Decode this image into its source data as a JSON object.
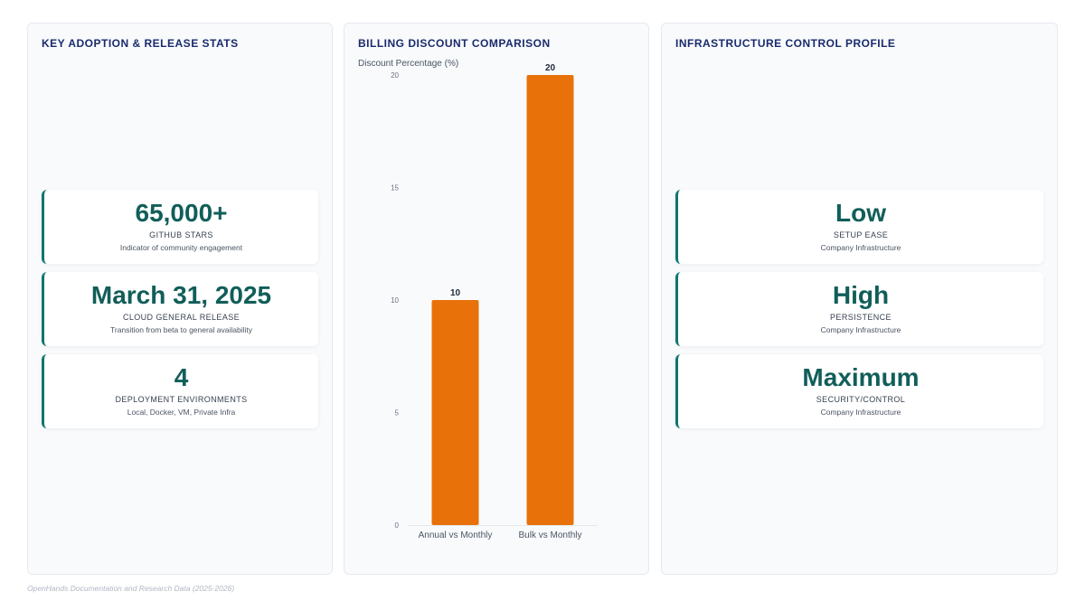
{
  "left_panel": {
    "title": "KEY ADOPTION & RELEASE STATS",
    "cards": [
      {
        "value": "65,000+",
        "label": "GITHUB STARS",
        "desc": "Indicator of community engagement"
      },
      {
        "value": "March 31, 2025",
        "label": "CLOUD GENERAL RELEASE",
        "desc": "Transition from beta to general availability"
      },
      {
        "value": "4",
        "label": "DEPLOYMENT ENVIRONMENTS",
        "desc": "Local, Docker, VM, Private Infra"
      }
    ]
  },
  "mid_panel": {
    "title": "BILLING DISCOUNT COMPARISON"
  },
  "right_panel": {
    "title": "INFRASTRUCTURE CONTROL PROFILE",
    "cards": [
      {
        "value": "Low",
        "label": "SETUP EASE",
        "desc": "Company Infrastructure"
      },
      {
        "value": "High",
        "label": "PERSISTENCE",
        "desc": "Company Infrastructure"
      },
      {
        "value": "Maximum",
        "label": "SECURITY/CONTROL",
        "desc": "Company Infrastructure"
      }
    ]
  },
  "chart_data": {
    "type": "bar",
    "title": "",
    "ylabel": "Discount Percentage (%)",
    "xlabel": "",
    "categories": [
      "Annual vs Monthly",
      "Bulk vs Monthly"
    ],
    "values": [
      10,
      20
    ],
    "ylim": [
      0,
      20
    ],
    "yticks": [
      0,
      5,
      10,
      15,
      20
    ],
    "bar_color": "#e8710a",
    "data_labels": true,
    "grid": false
  },
  "colors": {
    "accent": "#0f766e",
    "value_text": "#115e59",
    "title_text": "#1a2a6c",
    "bar": "#e8710a"
  },
  "footer": "OpenHands Documentation and Research Data (2025-2026)"
}
